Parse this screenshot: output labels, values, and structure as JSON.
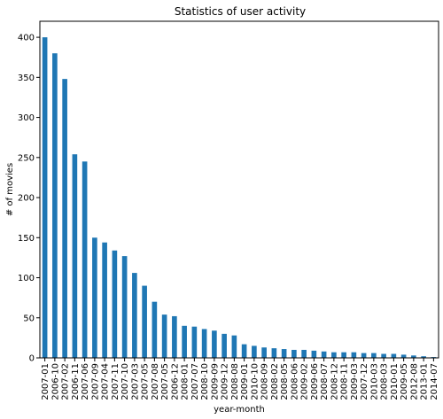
{
  "chart_data": {
    "type": "bar",
    "title": "Statistics of user activity",
    "xlabel": "year-month",
    "ylabel": "# of movies",
    "ylim": [
      0,
      420
    ],
    "yticks": [
      0,
      50,
      100,
      150,
      200,
      250,
      300,
      350,
      400
    ],
    "bar_color": "#1f77b4",
    "grid": false,
    "categories": [
      "2007-01",
      "2006-10",
      "2007-02",
      "2006-11",
      "2007-06",
      "2007-09",
      "2007-04",
      "2007-11",
      "2007-10",
      "2007-03",
      "2007-05",
      "2007-08",
      "2007-05",
      "2006-12",
      "2008-01",
      "2007-07",
      "2008-10",
      "2009-09",
      "2009-12",
      "2008-08",
      "2009-01",
      "2010-10",
      "2008-09",
      "2008-02",
      "2008-05",
      "2008-06",
      "2009-02",
      "2009-06",
      "2008-07",
      "2008-12",
      "2008-11",
      "2009-03",
      "2007-12",
      "2010-03",
      "2008-03",
      "2010-01",
      "2009-05",
      "2012-08",
      "2013-01",
      "2014-07"
    ],
    "values": [
      400,
      380,
      348,
      254,
      245,
      150,
      144,
      134,
      127,
      106,
      90,
      70,
      54,
      52,
      40,
      39,
      36,
      34,
      30,
      28,
      17,
      15,
      13,
      12,
      11,
      10,
      10,
      9,
      8,
      7,
      7,
      7,
      6,
      6,
      5,
      5,
      4,
      3,
      2,
      1
    ]
  }
}
